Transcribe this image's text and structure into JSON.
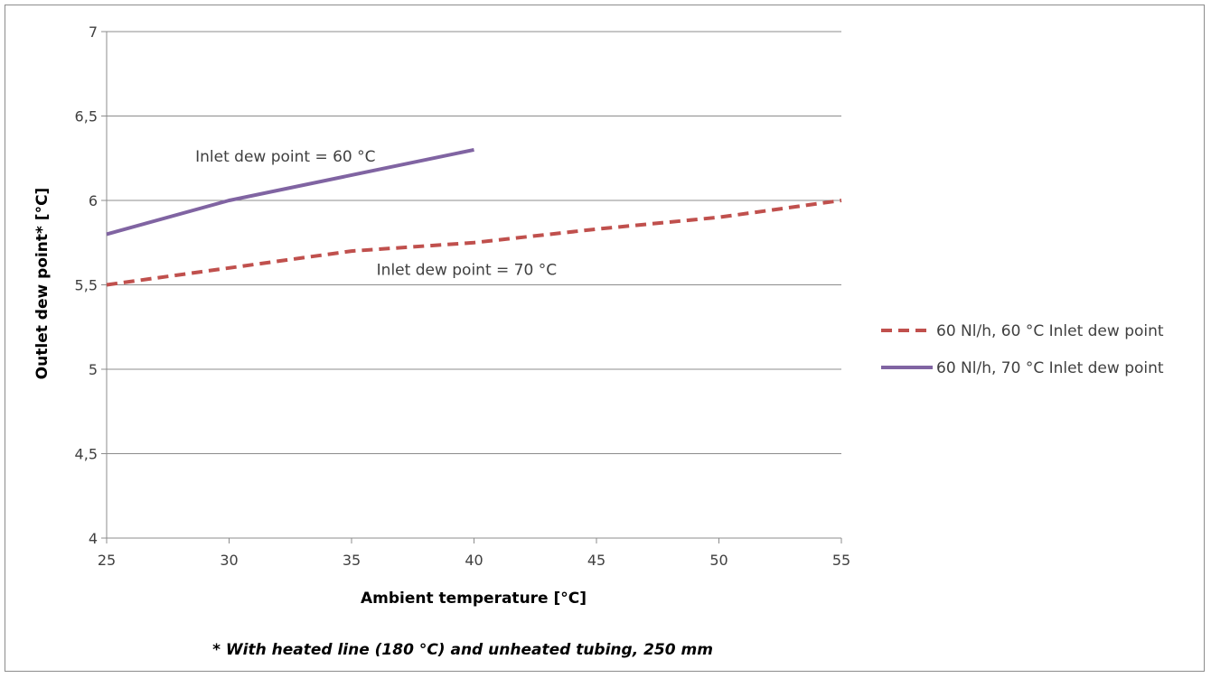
{
  "chart_data": {
    "type": "line",
    "xlabel": "Ambient temperature [°C]",
    "ylabel": "Outlet dew point* [°C]",
    "xlim": [
      25,
      55
    ],
    "ylim": [
      4,
      7
    ],
    "x_ticks": [
      "25",
      "30",
      "35",
      "40",
      "45",
      "50",
      "55"
    ],
    "y_ticks": [
      "4",
      "4,5",
      "5",
      "5,5",
      "6",
      "6,5",
      "7"
    ],
    "grid": "horizontal",
    "legend_position": "right",
    "series": [
      {
        "name": "60 Nl/h, 60 °C Inlet dew point",
        "color": "#c0504d",
        "style": "dashed",
        "x": [
          25,
          30,
          35,
          40,
          45,
          50,
          55
        ],
        "y": [
          5.5,
          5.6,
          5.7,
          5.75,
          5.83,
          5.9,
          6.0
        ]
      },
      {
        "name": "60 Nl/h, 70 °C Inlet dew point",
        "color": "#8064a2",
        "style": "solid",
        "x": [
          25,
          30,
          35,
          40
        ],
        "y": [
          5.8,
          6.0,
          6.15,
          6.3
        ]
      }
    ],
    "annotations": [
      {
        "text": "Inlet dew point = 60 °C",
        "x": 32.3,
        "y": 6.23
      },
      {
        "text": "Inlet dew point = 70 °C",
        "x": 39.7,
        "y": 5.56
      }
    ],
    "footnote": "* With heated line (180 °C) and  unheated tubing, 250 mm"
  }
}
